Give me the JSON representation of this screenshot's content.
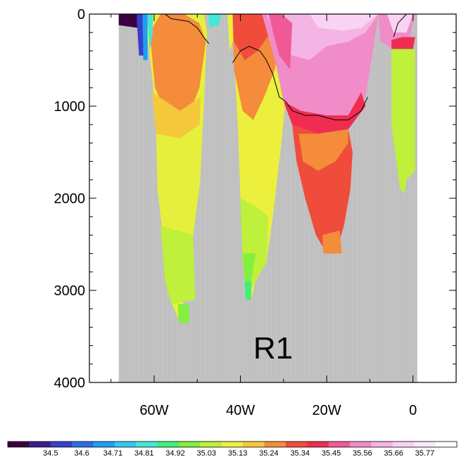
{
  "chart_data": {
    "type": "heatmap",
    "title": "",
    "xlabel": "",
    "ylabel": "",
    "panel_label": "R1",
    "x_range": [
      -75,
      10
    ],
    "y_range": [
      0,
      4000
    ],
    "y_reversed": true,
    "x_ticks": [
      {
        "value": -60,
        "label": "60W"
      },
      {
        "value": -40,
        "label": "40W"
      },
      {
        "value": -20,
        "label": "20W"
      },
      {
        "value": 0,
        "label": "0"
      }
    ],
    "y_ticks": [
      {
        "value": 0,
        "label": "0"
      },
      {
        "value": 1000,
        "label": "1000"
      },
      {
        "value": 2000,
        "label": "2000"
      },
      {
        "value": 3000,
        "label": "3000"
      },
      {
        "value": 4000,
        "label": "4000"
      }
    ],
    "land_color": "#c0c0c0",
    "colorbar": {
      "labels": [
        "34.5",
        "34.6",
        "34.71",
        "34.81",
        "34.92",
        "35.03",
        "35.13",
        "35.24",
        "35.34",
        "35.45",
        "35.56",
        "35.66",
        "35.77"
      ],
      "colors": [
        "#3a0040",
        "#3a1e8c",
        "#3a3ecc",
        "#2a6ee6",
        "#1e9ef0",
        "#32c8f0",
        "#46e6d8",
        "#3ef07a",
        "#82f03c",
        "#bef03c",
        "#ecf03c",
        "#f6c83c",
        "#f48c3c",
        "#f04c3c",
        "#f02c50",
        "#f05a96",
        "#f08cc8",
        "#f4b4e4",
        "#fad2f4",
        "#fce6fa",
        "#ffffff"
      ]
    },
    "regions": [
      {
        "name": "basin-west",
        "color": "#e6f03c",
        "points": [
          [
            -61.7,
            180
          ],
          [
            -59.7,
            1000
          ],
          [
            -59.2,
            1900
          ],
          [
            -57.5,
            2600
          ],
          [
            -56.3,
            3100
          ],
          [
            -54,
            3350
          ],
          [
            -51.5,
            2600
          ],
          [
            -49.3,
            1800
          ],
          [
            -47.7,
            200
          ],
          [
            -48.5,
            0
          ],
          [
            -62.5,
            0
          ]
        ]
      },
      {
        "name": "basin-west-orange",
        "color": "#f48c3c",
        "points": [
          [
            -61,
            200
          ],
          [
            -59.8,
            800
          ],
          [
            -57.5,
            1050
          ],
          [
            -52,
            1100
          ],
          [
            -49.5,
            800
          ],
          [
            -48,
            300
          ],
          [
            -49.5,
            100
          ],
          [
            -53,
            0
          ],
          [
            -58.5,
            0
          ]
        ]
      },
      {
        "name": "basin-west-yellow-inner",
        "color": "#f6c83c",
        "points": [
          [
            -60.5,
            850
          ],
          [
            -59.5,
            1300
          ],
          [
            -54,
            1350
          ],
          [
            -49.5,
            1200
          ],
          [
            -49.2,
            900
          ],
          [
            -54,
            1050
          ]
        ]
      },
      {
        "name": "basin-west-deep-green",
        "color": "#bef03c",
        "points": [
          [
            -58.5,
            2300
          ],
          [
            -57.5,
            2900
          ],
          [
            -56,
            3150
          ],
          [
            -50.5,
            3100
          ],
          [
            -51,
            2400
          ]
        ]
      },
      {
        "name": "basin-west-bottom-green",
        "color": "#82f03c",
        "points": [
          [
            -54.5,
            3150
          ],
          [
            -54.3,
            3350
          ],
          [
            -51.8,
            3350
          ],
          [
            -52,
            3150
          ]
        ]
      },
      {
        "name": "basin-west-cyan-edge",
        "color": "#1e9ef0",
        "points": [
          [
            -63,
            0
          ],
          [
            -62.5,
            500
          ],
          [
            -61.5,
            500
          ],
          [
            -61.5,
            0
          ]
        ]
      },
      {
        "name": "basin-west-teal-edge",
        "color": "#46e6d8",
        "points": [
          [
            -61.6,
            0
          ],
          [
            -61,
            400
          ],
          [
            -60.3,
            200
          ],
          [
            -60.3,
            0
          ]
        ]
      },
      {
        "name": "shelf-purple",
        "color": "#3a0040",
        "points": [
          [
            -68.2,
            0
          ],
          [
            -68.2,
            120
          ],
          [
            -63.8,
            150
          ],
          [
            -63.5,
            0
          ]
        ]
      },
      {
        "name": "shelf-blue",
        "color": "#3a3ecc",
        "points": [
          [
            -64,
            80
          ],
          [
            -63.5,
            450
          ],
          [
            -62.5,
            450
          ],
          [
            -62.7,
            0
          ],
          [
            -64,
            0
          ]
        ]
      },
      {
        "name": "ridge-green-cyan",
        "color": "#46e6d8",
        "points": [
          [
            -47.5,
            0
          ],
          [
            -47.2,
            150
          ],
          [
            -45,
            120
          ],
          [
            -44.5,
            0
          ]
        ]
      },
      {
        "name": "ridge-yellow",
        "color": "#ecf03c",
        "points": [
          [
            -43,
            0
          ],
          [
            -42.5,
            400
          ],
          [
            -41,
            200
          ],
          [
            -41,
            0
          ]
        ]
      },
      {
        "name": "basin-mid",
        "color": "#ecf03c",
        "points": [
          [
            -41.5,
            450
          ],
          [
            -40.5,
            1300
          ],
          [
            -39.8,
            2300
          ],
          [
            -38.8,
            3100
          ],
          [
            -37.5,
            3100
          ],
          [
            -36.5,
            2900
          ],
          [
            -34,
            2700
          ],
          [
            -32.5,
            2200
          ],
          [
            -30.5,
            1400
          ],
          [
            -29.5,
            900
          ],
          [
            -32,
            400
          ],
          [
            -36,
            100
          ],
          [
            -40.5,
            0
          ]
        ]
      },
      {
        "name": "basin-mid-orange",
        "color": "#f48c3c",
        "points": [
          [
            -41.8,
            100
          ],
          [
            -41.5,
            600
          ],
          [
            -39.5,
            1050
          ],
          [
            -37,
            1150
          ],
          [
            -34.5,
            900
          ],
          [
            -32,
            600
          ],
          [
            -31,
            200
          ],
          [
            -35,
            0
          ],
          [
            -41.8,
            0
          ]
        ]
      },
      {
        "name": "basin-mid-red",
        "color": "#f04c3c",
        "points": [
          [
            -41.8,
            0
          ],
          [
            -41.5,
            300
          ],
          [
            -39,
            500
          ],
          [
            -36,
            400
          ],
          [
            -33,
            200
          ],
          [
            -32.5,
            0
          ]
        ]
      },
      {
        "name": "basin-mid-green",
        "color": "#bef03c",
        "points": [
          [
            -40,
            2000
          ],
          [
            -39.5,
            2700
          ],
          [
            -38,
            3050
          ],
          [
            -36.5,
            2900
          ],
          [
            -34,
            2700
          ],
          [
            -33.5,
            2200
          ],
          [
            -36,
            2100
          ]
        ]
      },
      {
        "name": "basin-mid-deep-green",
        "color": "#82f03c",
        "points": [
          [
            -39.5,
            2600
          ],
          [
            -39,
            2900
          ],
          [
            -37.5,
            2900
          ],
          [
            -36.5,
            2600
          ]
        ]
      },
      {
        "name": "basin-mid-bright-green",
        "color": "#3ef07a",
        "points": [
          [
            -39,
            2900
          ],
          [
            -38.8,
            3100
          ],
          [
            -37.5,
            3100
          ],
          [
            -37.5,
            2900
          ]
        ]
      },
      {
        "name": "basin-east-pink",
        "color": "#f08cc8",
        "points": [
          [
            -35,
            0
          ],
          [
            -32,
            500
          ],
          [
            -30,
            950
          ],
          [
            -26,
            1050
          ],
          [
            -20,
            1100
          ],
          [
            -15,
            1100
          ],
          [
            -11,
            900
          ],
          [
            -9,
            300
          ],
          [
            -8,
            0
          ]
        ]
      },
      {
        "name": "basin-east-light-pink",
        "color": "#f4b4e4",
        "points": [
          [
            -34,
            0
          ],
          [
            -31,
            300
          ],
          [
            -28,
            450
          ],
          [
            -24,
            500
          ],
          [
            -20,
            350
          ],
          [
            -15,
            300
          ],
          [
            -11,
            200
          ],
          [
            -8,
            0
          ]
        ]
      },
      {
        "name": "basin-east-lightest",
        "color": "#fad2f4",
        "points": [
          [
            -24,
            0
          ],
          [
            -22,
            150
          ],
          [
            -16,
            180
          ],
          [
            -12,
            150
          ],
          [
            -8,
            0
          ]
        ]
      },
      {
        "name": "basin-east-magenta",
        "color": "#f05a96",
        "points": [
          [
            -33.5,
            0
          ],
          [
            -31,
            450
          ],
          [
            -28.5,
            600
          ],
          [
            -28,
            100
          ],
          [
            -30.5,
            0
          ]
        ]
      },
      {
        "name": "basin-east-red-band",
        "color": "#f02c50",
        "points": [
          [
            -30,
            950
          ],
          [
            -28,
            1200
          ],
          [
            -22,
            1300
          ],
          [
            -15,
            1250
          ],
          [
            -11,
            1000
          ],
          [
            -12,
            850
          ],
          [
            -15,
            1100
          ],
          [
            -20,
            1100
          ],
          [
            -26,
            1050
          ]
        ]
      },
      {
        "name": "basin-east-red",
        "color": "#f04c3c",
        "points": [
          [
            -28,
            1200
          ],
          [
            -27,
            1600
          ],
          [
            -25,
            2000
          ],
          [
            -22.5,
            2400
          ],
          [
            -20,
            2600
          ],
          [
            -18,
            2600
          ],
          [
            -16,
            2300
          ],
          [
            -14.5,
            1900
          ],
          [
            -14,
            1500
          ],
          [
            -15,
            1250
          ],
          [
            -22,
            1300
          ]
        ]
      },
      {
        "name": "basin-east-orange",
        "color": "#f48c3c",
        "points": [
          [
            -26.5,
            1300
          ],
          [
            -25.5,
            1600
          ],
          [
            -22,
            1700
          ],
          [
            -18,
            1600
          ],
          [
            -15,
            1400
          ],
          [
            -15,
            1250
          ],
          [
            -22,
            1300
          ]
        ]
      },
      {
        "name": "basin-east-deep-orange",
        "color": "#f48c3c",
        "points": [
          [
            -21,
            2400
          ],
          [
            -20.8,
            2600
          ],
          [
            -16.5,
            2600
          ],
          [
            -17,
            2350
          ]
        ]
      },
      {
        "name": "east-ridge-pink",
        "color": "#f08cc8",
        "points": [
          [
            -8,
            0
          ],
          [
            -7.5,
            300
          ],
          [
            -4,
            400
          ],
          [
            -1,
            300
          ],
          [
            0.5,
            0
          ]
        ]
      },
      {
        "name": "east-ridge-lightpink",
        "color": "#fad2f4",
        "points": [
          [
            -6,
            0
          ],
          [
            -4.5,
            200
          ],
          [
            -1.5,
            200
          ],
          [
            0,
            0
          ]
        ]
      },
      {
        "name": "east-ridge-red",
        "color": "#f02c50",
        "points": [
          [
            -5,
            280
          ],
          [
            -5,
            380
          ],
          [
            0,
            380
          ],
          [
            0.5,
            250
          ],
          [
            -2.5,
            250
          ]
        ]
      },
      {
        "name": "east-ridge-green",
        "color": "#bef03c",
        "points": [
          [
            -5,
            380
          ],
          [
            -5,
            1200
          ],
          [
            -3,
            1900
          ],
          [
            -2,
            1950
          ],
          [
            -1.5,
            1800
          ],
          [
            0.5,
            1700
          ],
          [
            0.5,
            380
          ]
        ]
      }
    ],
    "isoline": [
      {
        "name": "isoline-west",
        "points": [
          [
            -57.5,
            0
          ],
          [
            -56,
            50
          ],
          [
            -52,
            80
          ],
          [
            -50,
            150
          ],
          [
            -48.5,
            250
          ],
          [
            -47.3,
            320
          ]
        ]
      },
      {
        "name": "isoline-east",
        "points": [
          [
            -41.8,
            530
          ],
          [
            -40,
            400
          ],
          [
            -38,
            350
          ],
          [
            -35.5,
            400
          ],
          [
            -34,
            500
          ],
          [
            -32.5,
            650
          ],
          [
            -31,
            900
          ],
          [
            -29.5,
            950
          ],
          [
            -28,
            1050
          ],
          [
            -25,
            1100
          ],
          [
            -22,
            1100
          ],
          [
            -18,
            1150
          ],
          [
            -15,
            1150
          ],
          [
            -12,
            1050
          ],
          [
            -10.5,
            900
          ]
        ]
      },
      {
        "name": "isoline-far-east",
        "points": [
          [
            -4.5,
            250
          ],
          [
            -3.5,
            100
          ],
          [
            -1.5,
            0
          ]
        ]
      }
    ]
  }
}
